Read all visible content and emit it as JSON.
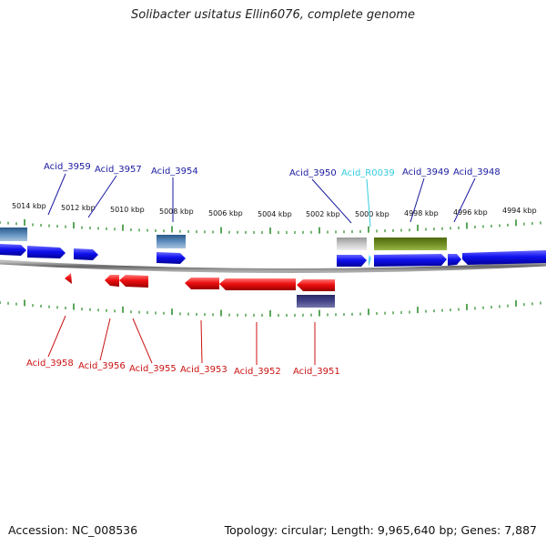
{
  "title": "Solibacter usitatus Ellin6076, complete genome",
  "footer": {
    "accession": "Accession: NC_008536",
    "summary": "Topology: circular; Length: 9,965,640 bp; Genes: 7,887"
  },
  "colors": {
    "forward": "#1a1aee",
    "reverse": "#ee1111",
    "rna": "#33ccdd",
    "label_top": "#1a1aa0",
    "label_bottom": "#cc1111",
    "tick": "#228822",
    "backbone": "#888888"
  },
  "scale": {
    "labels": [
      "5014 kbp",
      "5012 kbp",
      "5010 kbp",
      "5008 kbp",
      "5006 kbp",
      "5004 kbp",
      "5002 kbp",
      "5000 kbp",
      "4998 kbp",
      "4996 kbp",
      "4994 kbp"
    ]
  },
  "top_labels": [
    "Acid_3959",
    "Acid_3957",
    "Acid_3954",
    "Acid_3950",
    "Acid_R0039",
    "Acid_3949",
    "Acid_3948"
  ],
  "bottom_labels": [
    "Acid_3958",
    "Acid_3956",
    "Acid_3955",
    "Acid_3953",
    "Acid_3952",
    "Acid_3951"
  ]
}
